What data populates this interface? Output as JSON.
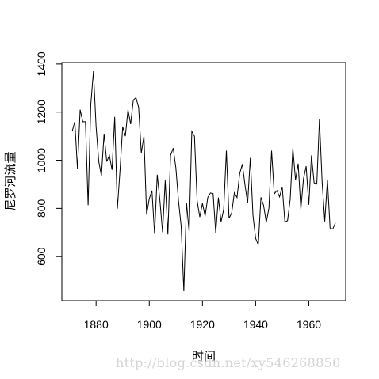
{
  "chart_data": {
    "type": "line",
    "xlabel": "时间",
    "ylabel": "尼罗河流量",
    "xlim": [
      1871,
      1970
    ],
    "ylim": [
      456,
      1370
    ],
    "x_ticks": [
      1880,
      1900,
      1920,
      1940,
      1960
    ],
    "y_ticks": [
      600,
      800,
      1000,
      1200,
      1400
    ],
    "grid": false,
    "line_color": "#000000",
    "series": [
      {
        "x": [
          1871,
          1872,
          1873,
          1874,
          1875,
          1876,
          1877,
          1878,
          1879,
          1880,
          1881,
          1882,
          1883,
          1884,
          1885,
          1886,
          1887,
          1888,
          1889,
          1890,
          1891,
          1892,
          1893,
          1894,
          1895,
          1896,
          1897,
          1898,
          1899,
          1900,
          1901,
          1902,
          1903,
          1904,
          1905,
          1906,
          1907,
          1908,
          1909,
          1910,
          1911,
          1912,
          1913,
          1914,
          1915,
          1916,
          1917,
          1918,
          1919,
          1920,
          1921,
          1922,
          1923,
          1924,
          1925,
          1926,
          1927,
          1928,
          1929,
          1930,
          1931,
          1932,
          1933,
          1934,
          1935,
          1936,
          1937,
          1938,
          1939,
          1940,
          1941,
          1942,
          1943,
          1944,
          1945,
          1946,
          1947,
          1948,
          1949,
          1950,
          1951,
          1952,
          1953,
          1954,
          1955,
          1956,
          1957,
          1958,
          1959,
          1960,
          1961,
          1962,
          1963,
          1964,
          1965,
          1966,
          1967,
          1968,
          1969,
          1970
        ],
        "values": [
          1120,
          1160,
          963,
          1210,
          1160,
          1160,
          813,
          1230,
          1370,
          1140,
          995,
          935,
          1110,
          994,
          1020,
          960,
          1180,
          799,
          958,
          1140,
          1100,
          1210,
          1150,
          1250,
          1260,
          1220,
          1030,
          1100,
          774,
          840,
          874,
          694,
          940,
          833,
          701,
          916,
          692,
          1020,
          1050,
          969,
          831,
          726,
          456,
          824,
          702,
          1120,
          1100,
          832,
          764,
          821,
          768,
          845,
          864,
          862,
          698,
          845,
          744,
          796,
          1040,
          759,
          781,
          865,
          845,
          944,
          984,
          897,
          822,
          1010,
          771,
          676,
          649,
          846,
          812,
          742,
          801,
          1040,
          860,
          874,
          848,
          890,
          744,
          749,
          838,
          1050,
          918,
          986,
          797,
          923,
          975,
          815,
          1020,
          906,
          901,
          1170,
          912,
          746,
          919,
          718,
          714,
          740
        ]
      }
    ]
  },
  "watermark": "http://blog.csdn.net/xy546268850"
}
